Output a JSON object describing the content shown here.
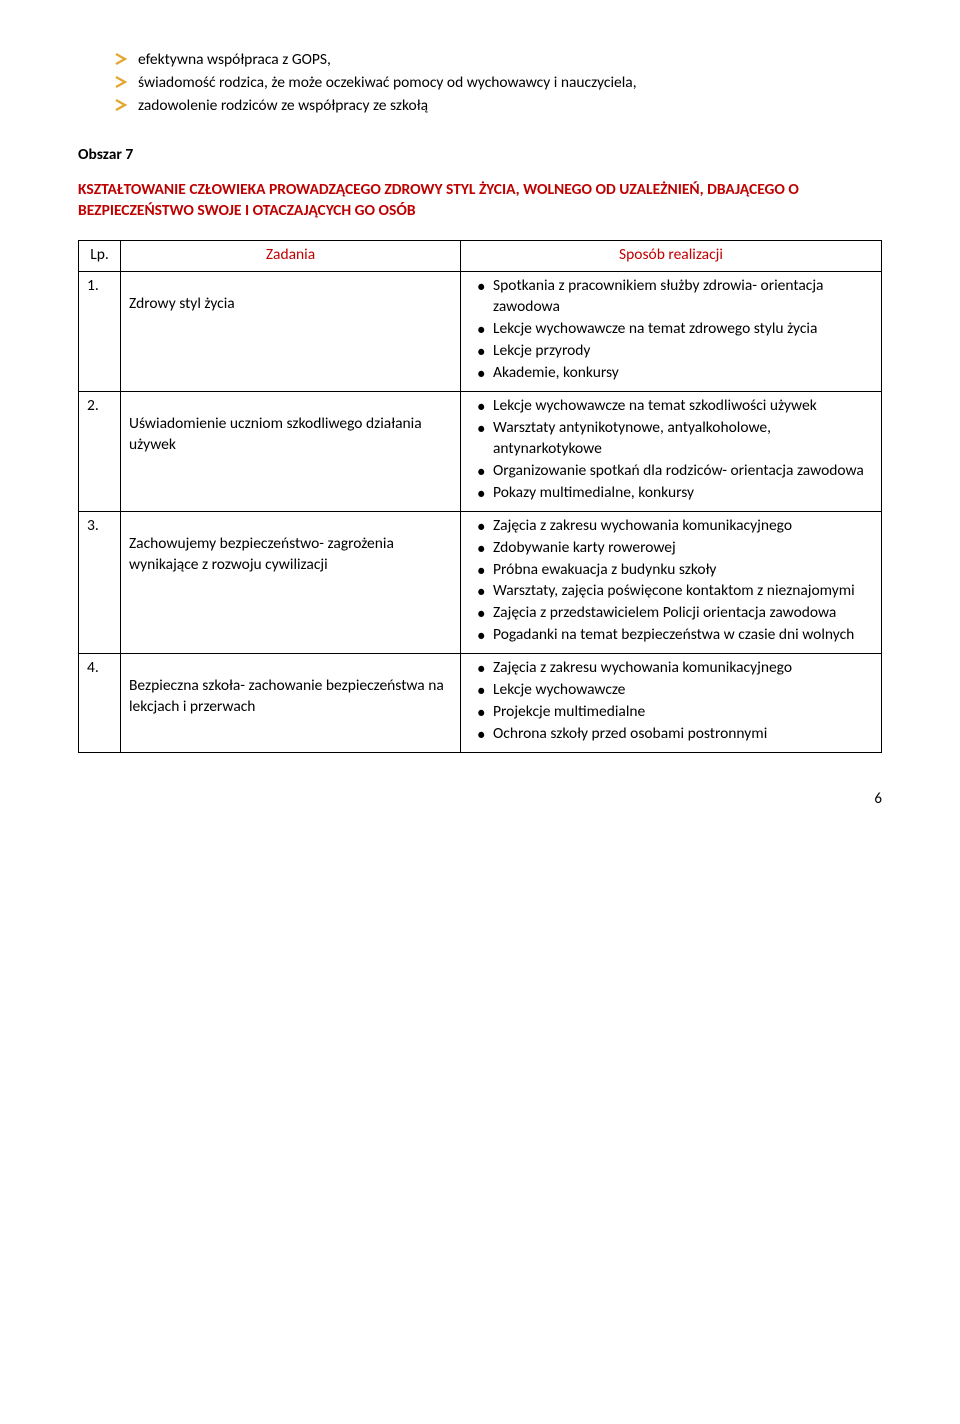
{
  "topBullets": [
    "efektywna współpraca z GOPS,",
    "świadomość rodzica, że może oczekiwać pomocy od wychowawcy i nauczyciela,",
    "zadowolenie rodziców ze współpracy ze szkołą"
  ],
  "obszar": "Obszar 7",
  "sectionTitle": "KSZTAŁTOWANIE CZŁOWIEKA PROWADZĄCEGO ZDROWY STYL ŻYCIA, WOLNEGO OD UZALEŻNIEŃ, DBAJĄCEGO O BEZPIECZEŃSTWO SWOJE I OTACZAJĄCYCH GO OSÓB",
  "header": {
    "lp": "Lp.",
    "zad": "Zadania",
    "spos": "Sposób realizacji"
  },
  "rows": [
    {
      "lp": "1.",
      "task": "Zdrowy styl życia",
      "real": [
        "Spotkania z pracownikiem służby zdrowia- orientacja zawodowa",
        "Lekcje wychowawcze na temat zdrowego stylu życia",
        "Lekcje przyrody",
        "Akademie, konkursy"
      ]
    },
    {
      "lp": "2.",
      "task": "Uświadomienie uczniom szkodliwego działania używek",
      "real": [
        "Lekcje wychowawcze na temat szkodliwości używek",
        "Warsztaty antynikotynowe, antyalkoholowe, antynarkotykowe",
        "Organizowanie spotkań dla rodziców- orientacja zawodowa",
        "Pokazy multimedialne, konkursy"
      ]
    },
    {
      "lp": "3.",
      "task": "Zachowujemy bezpieczeństwo- zagrożenia wynikające z rozwoju cywilizacji",
      "real": [
        "Zajęcia z zakresu wychowania komunikacyjnego",
        "Zdobywanie karty rowerowej",
        "Próbna ewakuacja z budynku szkoły",
        "Warsztaty, zajęcia poświęcone kontaktom z nieznajomymi",
        "Zajęcia z przedstawicielem Policji orientacja zawodowa",
        "Pogadanki na temat bezpieczeństwa w czasie dni wolnych"
      ]
    },
    {
      "lp": "4.",
      "task": "Bezpieczna szkoła- zachowanie bezpieczeństwa na lekcjach i przerwach",
      "real": [
        "Zajęcia z zakresu wychowania komunikacyjnego",
        "Lekcje wychowawcze",
        "Projekcje multimedialne",
        "Ochrona szkoły przed osobami postronnymi"
      ]
    }
  ],
  "pageNumber": "6",
  "arrowColor": "#e3a72e"
}
